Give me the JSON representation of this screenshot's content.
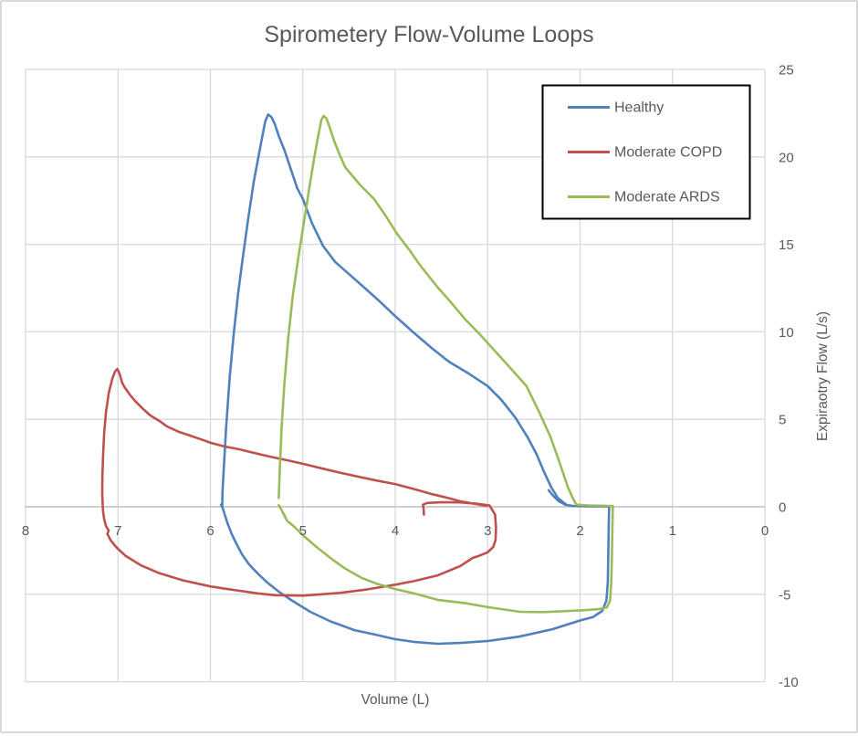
{
  "chart_data": {
    "type": "line",
    "title": "Spirometery Flow-Volume Loops",
    "xlabel": "Volume (L)",
    "ylabel": "Expiraotry Flow (L/s)",
    "x_axis": {
      "min": 0,
      "max": 8,
      "reversed": true,
      "tick_step": 1,
      "tick_labels": [
        "8",
        "7",
        "6",
        "5",
        "4",
        "3",
        "2",
        "1",
        "0"
      ]
    },
    "y_axis": {
      "min": -10,
      "max": 25,
      "tick_step": 5,
      "tick_labels": [
        "-10",
        "-5",
        "0",
        "5",
        "10",
        "15",
        "20",
        "25"
      ]
    },
    "grid": true,
    "legend_position": "top-right",
    "colors": {
      "text": "#595959",
      "gridline": "#d9d9d9",
      "zero_axis": "#bfbfbf"
    },
    "series": [
      {
        "name": "Healthy",
        "color": "#4F81BD",
        "points": [
          [
            2.34,
            0.95
          ],
          [
            2.29,
            0.62
          ],
          [
            2.23,
            0.32
          ],
          [
            2.16,
            0.12
          ],
          [
            2.08,
            0.05
          ],
          [
            1.92,
            0.03
          ],
          [
            1.74,
            0.02
          ],
          [
            1.685,
            0.0
          ],
          [
            1.69,
            -1.0
          ],
          [
            1.695,
            -2.8
          ],
          [
            1.7,
            -4.3
          ],
          [
            1.715,
            -5.35
          ],
          [
            1.76,
            -5.95
          ],
          [
            1.86,
            -6.3
          ],
          [
            2.0,
            -6.5
          ],
          [
            2.3,
            -7.0
          ],
          [
            2.66,
            -7.42
          ],
          [
            3.0,
            -7.67
          ],
          [
            3.3,
            -7.78
          ],
          [
            3.54,
            -7.83
          ],
          [
            3.8,
            -7.72
          ],
          [
            4.0,
            -7.57
          ],
          [
            4.22,
            -7.3
          ],
          [
            4.44,
            -7.05
          ],
          [
            4.7,
            -6.55
          ],
          [
            4.92,
            -6.0
          ],
          [
            5.12,
            -5.35
          ],
          [
            5.26,
            -4.85
          ],
          [
            5.38,
            -4.35
          ],
          [
            5.48,
            -3.85
          ],
          [
            5.58,
            -3.3
          ],
          [
            5.66,
            -2.7
          ],
          [
            5.72,
            -2.1
          ],
          [
            5.77,
            -1.55
          ],
          [
            5.81,
            -1.0
          ],
          [
            5.845,
            -0.45
          ],
          [
            5.868,
            -0.05
          ],
          [
            5.885,
            0.12
          ],
          [
            5.872,
            0.0
          ],
          [
            5.87,
            0.8
          ],
          [
            5.855,
            2.2
          ],
          [
            5.83,
            4.5
          ],
          [
            5.79,
            7.5
          ],
          [
            5.745,
            10.0
          ],
          [
            5.7,
            12.2
          ],
          [
            5.65,
            14.2
          ],
          [
            5.59,
            16.5
          ],
          [
            5.53,
            18.6
          ],
          [
            5.47,
            20.3
          ],
          [
            5.43,
            21.4
          ],
          [
            5.405,
            22.05
          ],
          [
            5.375,
            22.42
          ],
          [
            5.34,
            22.28
          ],
          [
            5.305,
            21.9
          ],
          [
            5.26,
            21.2
          ],
          [
            5.2,
            20.4
          ],
          [
            5.13,
            19.3
          ],
          [
            5.06,
            18.2
          ],
          [
            5.0,
            17.6
          ],
          [
            4.9,
            16.2
          ],
          [
            4.78,
            14.9
          ],
          [
            4.65,
            14.0
          ],
          [
            4.5,
            13.3
          ],
          [
            4.35,
            12.6
          ],
          [
            4.17,
            11.75
          ],
          [
            4.0,
            10.9
          ],
          [
            3.8,
            9.95
          ],
          [
            3.6,
            9.05
          ],
          [
            3.42,
            8.3
          ],
          [
            3.2,
            7.6
          ],
          [
            3.0,
            6.9
          ],
          [
            2.85,
            6.1
          ],
          [
            2.7,
            5.1
          ],
          [
            2.57,
            4.0
          ],
          [
            2.47,
            3.0
          ],
          [
            2.39,
            2.0
          ],
          [
            2.31,
            1.1
          ],
          [
            2.24,
            0.5
          ],
          [
            2.15,
            0.12
          ]
        ]
      },
      {
        "name": "Moderate COPD",
        "color": "#C0504D",
        "points": [
          [
            3.69,
            -0.45
          ],
          [
            3.692,
            -0.15
          ],
          [
            3.7,
            0.12
          ],
          [
            3.655,
            0.22
          ],
          [
            3.5,
            0.26
          ],
          [
            3.3,
            0.25
          ],
          [
            3.12,
            0.18
          ],
          [
            2.98,
            0.08
          ],
          [
            2.92,
            -0.45
          ],
          [
            2.91,
            -1.2
          ],
          [
            2.915,
            -1.9
          ],
          [
            2.94,
            -2.3
          ],
          [
            3.0,
            -2.6
          ],
          [
            3.09,
            -2.8
          ],
          [
            3.16,
            -2.92
          ],
          [
            3.3,
            -3.4
          ],
          [
            3.54,
            -3.92
          ],
          [
            3.8,
            -4.25
          ],
          [
            4.0,
            -4.45
          ],
          [
            4.3,
            -4.72
          ],
          [
            4.6,
            -4.92
          ],
          [
            5.0,
            -5.08
          ],
          [
            5.3,
            -5.05
          ],
          [
            5.49,
            -4.95
          ],
          [
            5.75,
            -4.75
          ],
          [
            6.0,
            -4.55
          ],
          [
            6.3,
            -4.2
          ],
          [
            6.55,
            -3.8
          ],
          [
            6.75,
            -3.35
          ],
          [
            6.92,
            -2.8
          ],
          [
            7.02,
            -2.3
          ],
          [
            7.08,
            -1.9
          ],
          [
            7.115,
            -1.55
          ],
          [
            7.1,
            -1.35
          ],
          [
            7.13,
            -1.1
          ],
          [
            7.15,
            -0.7
          ],
          [
            7.16,
            -0.3
          ],
          [
            7.165,
            0.1
          ],
          [
            7.17,
            0.8
          ],
          [
            7.168,
            1.8
          ],
          [
            7.16,
            3.0
          ],
          [
            7.15,
            4.2
          ],
          [
            7.13,
            5.4
          ],
          [
            7.1,
            6.5
          ],
          [
            7.06,
            7.35
          ],
          [
            7.03,
            7.75
          ],
          [
            7.005,
            7.88
          ],
          [
            6.98,
            7.55
          ],
          [
            6.955,
            7.1
          ],
          [
            6.93,
            6.85
          ],
          [
            6.87,
            6.4
          ],
          [
            6.81,
            6.02
          ],
          [
            6.73,
            5.6
          ],
          [
            6.65,
            5.22
          ],
          [
            6.55,
            4.9
          ],
          [
            6.47,
            4.6
          ],
          [
            6.35,
            4.3
          ],
          [
            6.22,
            4.07
          ],
          [
            6.1,
            3.85
          ],
          [
            5.99,
            3.65
          ],
          [
            5.85,
            3.45
          ],
          [
            5.69,
            3.29
          ],
          [
            5.5,
            3.05
          ],
          [
            5.36,
            2.87
          ],
          [
            5.17,
            2.66
          ],
          [
            4.99,
            2.45
          ],
          [
            4.8,
            2.2
          ],
          [
            4.6,
            1.95
          ],
          [
            4.4,
            1.72
          ],
          [
            4.2,
            1.5
          ],
          [
            4.0,
            1.3
          ],
          [
            3.8,
            1.02
          ],
          [
            3.6,
            0.72
          ],
          [
            3.44,
            0.52
          ],
          [
            3.3,
            0.32
          ],
          [
            3.15,
            0.18
          ],
          [
            3.02,
            0.06
          ]
        ]
      },
      {
        "name": "Moderate ARDS",
        "color": "#9BBB59",
        "points": [
          [
            5.26,
            0.5
          ],
          [
            5.25,
            2.0
          ],
          [
            5.23,
            4.5
          ],
          [
            5.2,
            7.0
          ],
          [
            5.16,
            9.5
          ],
          [
            5.11,
            12.0
          ],
          [
            5.05,
            14.2
          ],
          [
            4.99,
            16.2
          ],
          [
            4.93,
            18.2
          ],
          [
            4.875,
            20.0
          ],
          [
            4.83,
            21.3
          ],
          [
            4.8,
            22.1
          ],
          [
            4.775,
            22.35
          ],
          [
            4.745,
            22.2
          ],
          [
            4.71,
            21.7
          ],
          [
            4.66,
            20.9
          ],
          [
            4.6,
            20.1
          ],
          [
            4.54,
            19.4
          ],
          [
            4.5,
            19.15
          ],
          [
            4.38,
            18.4
          ],
          [
            4.23,
            17.6
          ],
          [
            4.1,
            16.6
          ],
          [
            3.98,
            15.6
          ],
          [
            3.85,
            14.7
          ],
          [
            3.73,
            13.8
          ],
          [
            3.55,
            12.6
          ],
          [
            3.4,
            11.7
          ],
          [
            3.24,
            10.7
          ],
          [
            3.1,
            9.95
          ],
          [
            2.99,
            9.3
          ],
          [
            2.8,
            8.2
          ],
          [
            2.58,
            6.9
          ],
          [
            2.45,
            5.5
          ],
          [
            2.32,
            4.0
          ],
          [
            2.22,
            2.5
          ],
          [
            2.13,
            1.1
          ],
          [
            2.07,
            0.4
          ],
          [
            2.04,
            0.12
          ],
          [
            1.9,
            0.08
          ],
          [
            1.75,
            0.06
          ],
          [
            1.645,
            0.04
          ],
          [
            1.65,
            -1.2
          ],
          [
            1.655,
            -2.8
          ],
          [
            1.662,
            -4.3
          ],
          [
            1.675,
            -5.35
          ],
          [
            1.71,
            -5.75
          ],
          [
            1.8,
            -5.85
          ],
          [
            1.985,
            -5.92
          ],
          [
            2.2,
            -5.97
          ],
          [
            2.4,
            -6.02
          ],
          [
            2.65,
            -6.0
          ],
          [
            2.99,
            -5.74
          ],
          [
            3.25,
            -5.5
          ],
          [
            3.54,
            -5.32
          ],
          [
            3.8,
            -4.95
          ],
          [
            4.0,
            -4.7
          ],
          [
            4.2,
            -4.4
          ],
          [
            4.36,
            -4.07
          ],
          [
            4.55,
            -3.5
          ],
          [
            4.69,
            -2.97
          ],
          [
            4.85,
            -2.3
          ],
          [
            4.99,
            -1.67
          ],
          [
            5.09,
            -1.15
          ],
          [
            5.17,
            -0.8
          ],
          [
            5.225,
            -0.25
          ],
          [
            5.185,
            -0.6
          ],
          [
            5.26,
            0.1
          ]
        ]
      }
    ]
  }
}
